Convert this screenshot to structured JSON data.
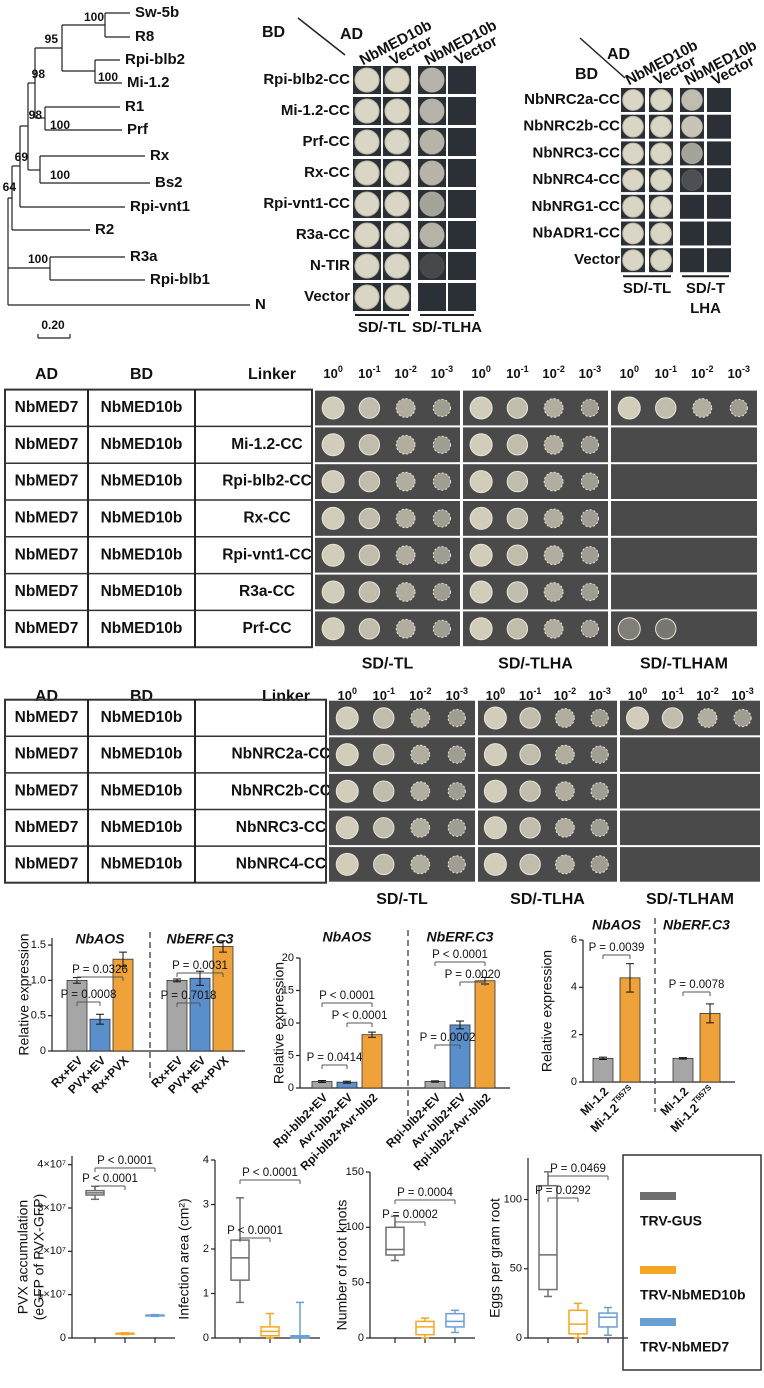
{
  "tree": {
    "leaves": [
      "Sw-5b",
      "R8",
      "Rpi-blb2",
      "Mi-1.2",
      "R1",
      "Prf",
      "Rx",
      "Bs2",
      "Rpi-vnt1",
      "R2",
      "R3a",
      "Rpi-blb1",
      "N"
    ],
    "bootstraps": [
      "100",
      "95",
      "100",
      "98",
      "100",
      "98",
      "100",
      "69",
      "64",
      "100"
    ],
    "scale": "0.20"
  },
  "y2h_cc": {
    "ad": "AD",
    "bd": "BD",
    "columns": [
      "NbMED10b",
      "Vector",
      "NbMED10b",
      "Vector"
    ],
    "rows": [
      "Rpi-blb2-CC",
      "Mi-1.2-CC",
      "Prf-CC",
      "Rx-CC",
      "Rpi-vnt1-CC",
      "R3a-CC",
      "N-TIR",
      "Vector"
    ],
    "media": [
      [
        "SD/-TL"
      ],
      [
        "SD/-TLHA"
      ]
    ]
  },
  "y2h_nrc": {
    "ad": "AD",
    "bd": "BD",
    "columns": [
      "NbMED10b",
      "Vector",
      "NbMED10b",
      "Vector"
    ],
    "rows": [
      "NbNRC2a-CC",
      "NbNRC2b-CC",
      "NbNRC3-CC",
      "NbNRC4-CC",
      "NbNRG1-CC",
      "NbADR1-CC",
      "Vector"
    ],
    "media": [
      [
        "SD/-TL"
      ],
      [
        "SD/-T",
        "LHA"
      ]
    ]
  },
  "y3h_cc": {
    "headers": [
      "AD",
      "BD",
      "Linker"
    ],
    "dilutions": [
      {
        "base": "10",
        "exp": "0"
      },
      {
        "base": "10",
        "exp": "-1"
      },
      {
        "base": "10",
        "exp": "-2"
      },
      {
        "base": "10",
        "exp": "-3"
      }
    ],
    "rows": [
      [
        "NbMED7",
        "NbMED10b",
        null
      ],
      [
        "NbMED7",
        "NbMED10b",
        "Mi-1.2-CC"
      ],
      [
        "NbMED7",
        "NbMED10b",
        "Rpi-blb2-CC"
      ],
      [
        "NbMED7",
        "NbMED10b",
        "Rx-CC"
      ],
      [
        "NbMED7",
        "NbMED10b",
        "Rpi-vnt1-CC"
      ],
      [
        "NbMED7",
        "NbMED10b",
        "R3a-CC"
      ],
      [
        "NbMED7",
        "NbMED10b",
        "Prf-CC"
      ]
    ],
    "media": [
      "SD/-TL",
      "SD/-TLHA",
      "SD/-TLHAM"
    ]
  },
  "y3h_nrc": {
    "headers": [
      "AD",
      "BD",
      "Linker"
    ],
    "dilutions": [
      {
        "base": "10",
        "exp": "0"
      },
      {
        "base": "10",
        "exp": "-1"
      },
      {
        "base": "10",
        "exp": "-2"
      },
      {
        "base": "10",
        "exp": "-3"
      }
    ],
    "rows": [
      [
        "NbMED7",
        "NbMED10b",
        null
      ],
      [
        "NbMED7",
        "NbMED10b",
        "NbNRC2a-CC"
      ],
      [
        "NbMED7",
        "NbMED10b",
        "NbNRC2b-CC"
      ],
      [
        "NbMED7",
        "NbMED10b",
        "NbNRC3-CC"
      ],
      [
        "NbMED7",
        "NbMED10b",
        "NbNRC4-CC"
      ]
    ],
    "media": [
      "SD/-TL",
      "SD/-TLHA",
      "SD/-TLHAM"
    ]
  },
  "legend": [
    {
      "name": "TRV-GUS",
      "color": "#6e6e6e"
    },
    {
      "name": "TRV-NbMED10b",
      "color": "#f5a623"
    },
    {
      "name": "TRV-NbMED7",
      "color": "#6a9fd4"
    }
  ],
  "chart_data": [
    {
      "type": "bar",
      "ylabel": "Relative expression",
      "ylim": [
        0,
        1.6
      ],
      "yticks": [
        0,
        0.5,
        {
          "value": 1,
          "label": "1.0"
        },
        1.5
      ],
      "panels": [
        {
          "title": "NbAOS",
          "categories": [
            "Rx+EV",
            "PVX+EV",
            "Rx+PVX"
          ],
          "values": [
            1.0,
            0.45,
            1.3
          ],
          "errors": [
            0.04,
            0.07,
            0.1
          ],
          "colors": [
            "#a6a6a6",
            "#5b8fcc",
            "#f0a23a"
          ],
          "annotations": [
            "P = 0.0008",
            "P = 0.0326"
          ]
        },
        {
          "title": "NbERF.C3",
          "categories": [
            "Rx+EV",
            "PVX+EV",
            "Rx+PVX"
          ],
          "values": [
            1.0,
            1.03,
            1.48
          ],
          "errors": [
            0.02,
            0.1,
            0.08
          ],
          "colors": [
            "#a6a6a6",
            "#5b8fcc",
            "#f0a23a"
          ],
          "annotations": [
            "P = 0.7018",
            "P = 0.0031"
          ]
        }
      ]
    },
    {
      "type": "bar",
      "ylabel": "Relative expression",
      "ylim": [
        0,
        20
      ],
      "yticks": [
        0,
        5,
        10,
        15,
        20
      ],
      "panels": [
        {
          "title": "NbAOS",
          "categories": [
            "Rpi-blb2+EV",
            "Avr-blb2+EV",
            "Rpi-blb2+Avr-blb2"
          ],
          "values": [
            1.0,
            0.9,
            8.2
          ],
          "errors": [
            0.15,
            0.15,
            0.4
          ],
          "colors": [
            "#a6a6a6",
            "#5b8fcc",
            "#f0a23a"
          ],
          "annotations": [
            "P = 0.0414",
            "P < 0.0001",
            "P < 0.0001"
          ]
        },
        {
          "title": "NbERF.C3",
          "categories": [
            "Rpi-blb2+EV",
            "Avr-blb2+EV",
            "Rpi-blb2+Avr-blb2"
          ],
          "values": [
            1.0,
            9.7,
            16.5
          ],
          "errors": [
            0.1,
            0.6,
            0.5
          ],
          "colors": [
            "#a6a6a6",
            "#5b8fcc",
            "#f0a23a"
          ],
          "annotations": [
            "P = 0.0002",
            "P < 0.0001",
            "P = 0.0020"
          ]
        }
      ]
    },
    {
      "type": "bar",
      "ylabel": "Relative expression",
      "ylim": [
        0,
        6
      ],
      "yticks": [
        0,
        2,
        4,
        6
      ],
      "panels": [
        {
          "title": "NbAOS",
          "categories": [
            "Mi-1.2",
            {
              "text": "Mi-1.2",
              "sup": "T557S"
            }
          ],
          "values": [
            1.0,
            4.4
          ],
          "errors": [
            0.05,
            0.6
          ],
          "colors": [
            "#a6a6a6",
            "#f0a23a"
          ],
          "annotations": [
            "P = 0.0039"
          ]
        },
        {
          "title": "NbERF.C3",
          "categories": [
            "Mi-1.2",
            {
              "text": "Mi-1.2",
              "sup": "T557S"
            }
          ],
          "values": [
            1.0,
            2.9
          ],
          "errors": [
            0.03,
            0.4
          ],
          "colors": [
            "#a6a6a6",
            "#f0a23a"
          ],
          "annotations": [
            "P = 0.0078"
          ]
        }
      ]
    },
    {
      "type": "box",
      "ylabel": [
        "PVX accumulation",
        "(eGFP of PVX-GFP)"
      ],
      "ylim": [
        0,
        42000000
      ],
      "yticks": [
        0,
        {
          "value": 10000000,
          "label": "1×10⁷"
        },
        {
          "value": 20000000,
          "label": "2×10⁷"
        },
        {
          "value": 30000000,
          "label": "3×10⁷"
        },
        {
          "value": 40000000,
          "label": "4×10⁷"
        }
      ],
      "values": [
        [
          32000000,
          33000000,
          33500000,
          34000000,
          35000000
        ],
        [
          800000,
          900000,
          1000000,
          1100000,
          1200000
        ],
        [
          5000000,
          5100000,
          5200000,
          5300000,
          5400000
        ]
      ],
      "annotations": [
        "P < 0.0001",
        "P < 0.0001"
      ]
    },
    {
      "type": "box",
      "ylabel": "Infection area (cm²)",
      "ylim": [
        0,
        4
      ],
      "yticks": [
        0,
        1,
        2,
        3,
        4
      ],
      "values": [
        [
          0.8,
          1.3,
          1.8,
          2.2,
          3.15
        ],
        [
          0,
          0.05,
          0.15,
          0.25,
          0.55
        ],
        [
          0,
          0,
          0.02,
          0.05,
          0.8
        ]
      ],
      "annotations": [
        "P < 0.0001",
        "P < 0.0001"
      ]
    },
    {
      "type": "box",
      "ylabel": "Number of root knots",
      "ylim": [
        0,
        150
      ],
      "yticks": [
        0,
        50,
        100,
        150
      ],
      "values": [
        [
          70,
          75,
          80,
          100,
          110
        ],
        [
          0,
          3,
          10,
          15,
          18
        ],
        [
          5,
          10,
          15,
          22,
          25
        ]
      ],
      "annotations": [
        "P = 0.0002",
        "P = 0.0004"
      ]
    },
    {
      "type": "box",
      "ylabel": "Eggs per gram root",
      "ylim": [
        0,
        130
      ],
      "yticks": [
        0,
        50,
        100
      ],
      "values": [
        [
          30,
          35,
          60,
          110,
          120
        ],
        [
          0,
          3,
          10,
          20,
          25
        ],
        [
          2,
          8,
          15,
          18,
          22
        ]
      ],
      "annotations": [
        "P = 0.0292",
        "P = 0.0469"
      ]
    }
  ]
}
